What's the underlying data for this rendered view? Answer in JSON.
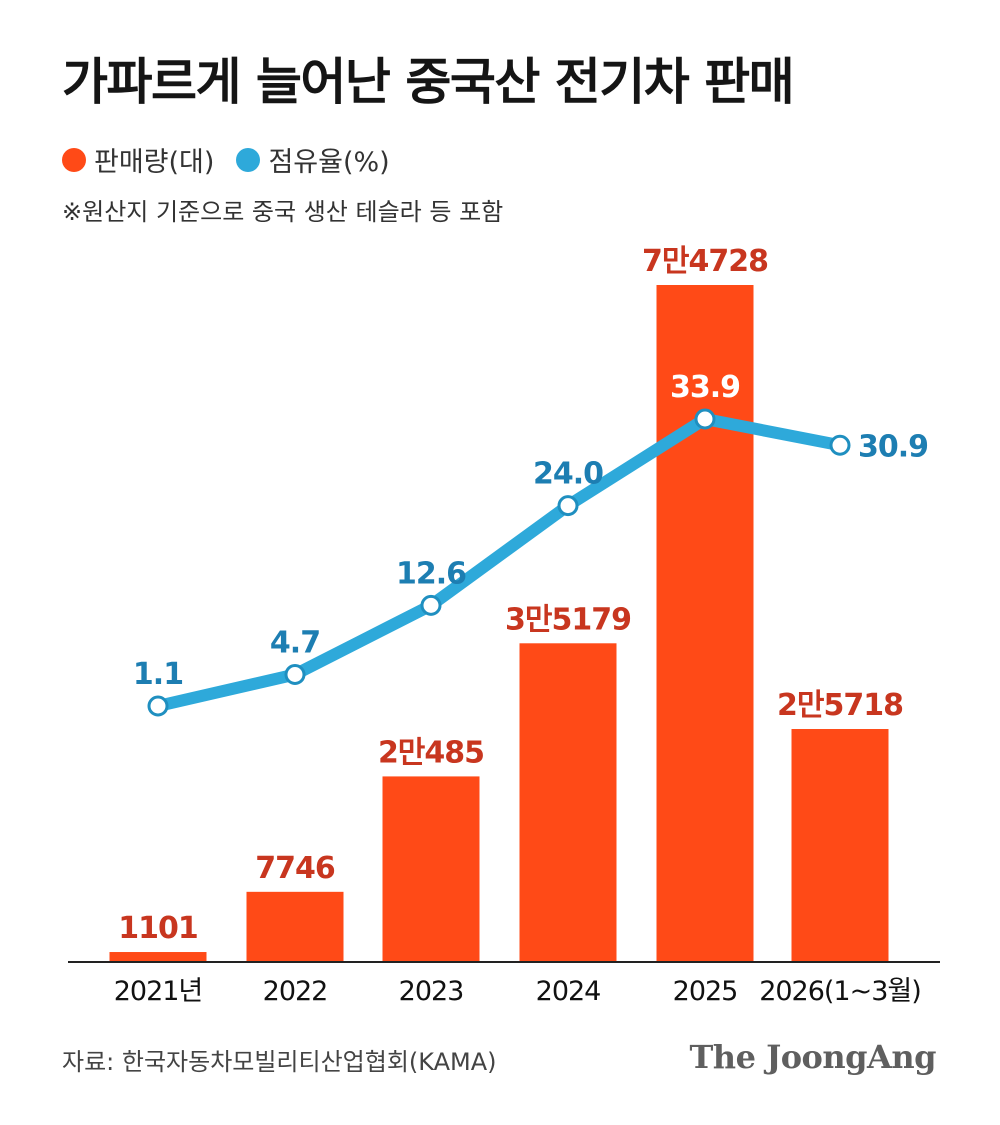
{
  "title": "가파르게 늘어난 중국산 전기차 판매",
  "legend": {
    "sales_label": "판매량(대)",
    "share_label": "점유율(%)",
    "sales_color": "#FF4A17",
    "share_color": "#2EA9DA"
  },
  "note": "※원산지 기준으로 중국 생산 테슬라 등 포함",
  "chart_data": {
    "type": "bar",
    "categories": [
      "2021년",
      "2022",
      "2023",
      "2024",
      "2025",
      "2026(1~3월)"
    ],
    "series": [
      {
        "name": "판매량(대)",
        "type": "bar",
        "values": [
          1101,
          7746,
          20485,
          35179,
          74728,
          25718
        ],
        "labels": [
          "1101",
          "7746",
          "2만485",
          "3만5179",
          "7만4728",
          "2만5718"
        ],
        "color": "#FF4A17"
      },
      {
        "name": "점유율(%)",
        "type": "line",
        "values": [
          1.1,
          4.7,
          12.6,
          24.0,
          33.9,
          30.9
        ],
        "labels": [
          "1.1",
          "4.7",
          "12.6",
          "24.0",
          "33.9",
          "30.9"
        ],
        "color": "#2EA9DA"
      }
    ],
    "grid": false
  },
  "source": "자료: 한국자동차모빌리티산업협회(KAMA)",
  "brand": "The JoongAng"
}
